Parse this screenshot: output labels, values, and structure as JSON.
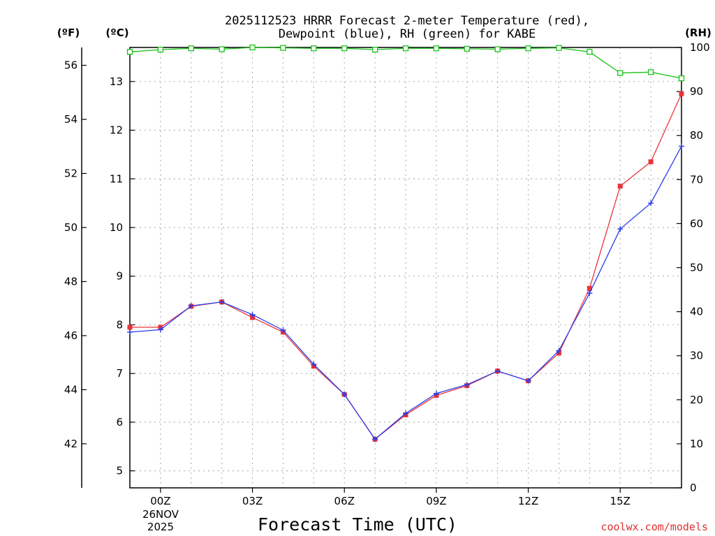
{
  "colors": {
    "temperature": "#e8333a",
    "dewpoint": "#2a3de8",
    "rh": "#17c417",
    "grid": "#b4b4b4",
    "credit": "#e03030"
  },
  "chart_data": {
    "type": "line",
    "title_line1": "2025112523 HRRR Forecast 2-meter Temperature (red),",
    "title_line2": "Dewpoint (blue), RH (green) for KABE",
    "xlabel": "Forecast Time (UTC)",
    "credit": "coolwx.com/models",
    "unit_f": "(ºF)",
    "unit_c": "(ºC)",
    "unit_rh": "(RH)",
    "date_line1": "26NOV",
    "date_line2": "2025",
    "x": [
      -1,
      0,
      1,
      2,
      3,
      4,
      5,
      6,
      7,
      8,
      9,
      10,
      11,
      12,
      13,
      14,
      15,
      16,
      17
    ],
    "x_ticks": [
      0,
      3,
      6,
      9,
      12,
      15
    ],
    "x_tick_labels": [
      "00Z",
      "03Z",
      "06Z",
      "09Z",
      "12Z",
      "15Z"
    ],
    "xlim": [
      -1,
      17
    ],
    "celsius_range": [
      4.65,
      13.7
    ],
    "celsius_ticks": [
      5,
      6,
      7,
      8,
      9,
      10,
      11,
      12,
      13
    ],
    "fahrenheit_ticks": [
      42,
      44,
      46,
      48,
      50,
      52,
      54,
      56
    ],
    "rh_range": [
      0,
      100
    ],
    "rh_ticks": [
      0,
      10,
      20,
      30,
      40,
      50,
      60,
      70,
      80,
      90,
      100
    ],
    "series": [
      {
        "name": "Temperature",
        "unit": "C",
        "values": [
          7.95,
          7.95,
          8.38,
          8.47,
          8.15,
          7.85,
          7.15,
          6.57,
          5.65,
          6.15,
          6.55,
          6.75,
          7.05,
          6.85,
          7.42,
          8.75,
          10.85,
          11.35,
          12.75
        ]
      },
      {
        "name": "Dewpoint",
        "unit": "C",
        "values": [
          7.85,
          7.9,
          8.39,
          8.47,
          8.21,
          7.89,
          7.19,
          6.57,
          5.65,
          6.18,
          6.59,
          6.77,
          7.05,
          6.85,
          7.47,
          8.65,
          9.97,
          10.5,
          11.67
        ]
      },
      {
        "name": "RH",
        "unit": "%",
        "values": [
          99.0,
          99.5,
          99.8,
          99.6,
          100,
          99.9,
          99.8,
          99.8,
          99.5,
          99.8,
          99.8,
          99.7,
          99.6,
          99.8,
          99.9,
          99.0,
          94.2,
          94.4,
          93.0
        ]
      }
    ]
  }
}
